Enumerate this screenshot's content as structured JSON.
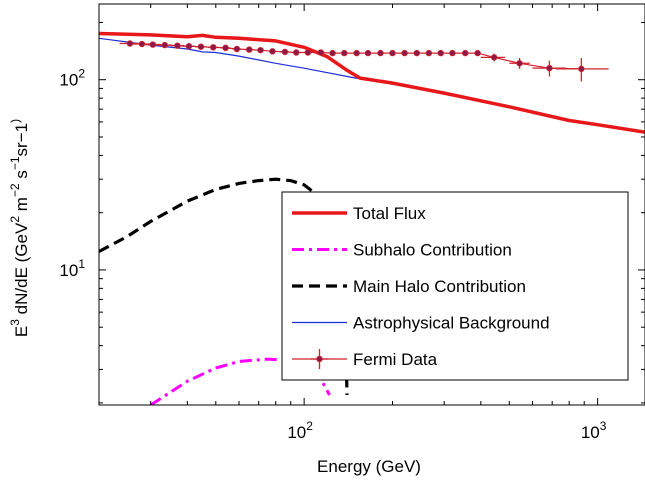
{
  "chart_data": {
    "type": "line",
    "xlabel": "Energy (GeV)",
    "ylabel_parts": [
      "E",
      "3",
      " dN/dE (GeV",
      "2",
      " m",
      "−2",
      " s",
      "−1",
      "sr",
      "−1",
      ")"
    ],
    "x_scale": "log",
    "y_scale": "log",
    "xlim": [
      20,
      1450
    ],
    "ylim": [
      1.95,
      250
    ],
    "x_ticks": [
      {
        "value": 100,
        "base": "10",
        "exp": "2"
      },
      {
        "value": 1000,
        "base": "10",
        "exp": "3"
      }
    ],
    "y_ticks": [
      {
        "value": 10,
        "base": "10",
        "exp": "1"
      },
      {
        "value": 100,
        "base": "10",
        "exp": "2"
      }
    ],
    "grid": false,
    "legend_position": "bottom-right",
    "series": [
      {
        "name": "Total Flux",
        "color": "#e8171a",
        "style": "solid-thick",
        "x": [
          20,
          30,
          40,
          45,
          50,
          60,
          80,
          100,
          120,
          140,
          155,
          200,
          300,
          500,
          800,
          1000,
          1450
        ],
        "y": [
          175,
          172,
          168,
          171,
          167,
          165,
          160,
          148,
          132,
          112,
          102,
          96,
          85,
          72,
          61,
          58,
          53
        ]
      },
      {
        "name": "Subhalo Contribution",
        "color": "#ff00ff",
        "style": "dashdot",
        "x": [
          30,
          40,
          50,
          60,
          75,
          90,
          105,
          115,
          122
        ],
        "y": [
          1.95,
          2.6,
          3.05,
          3.3,
          3.4,
          3.35,
          3.05,
          2.6,
          2.2
        ]
      },
      {
        "name": "Main Halo Contribution",
        "color": "#000000",
        "style": "dashed",
        "x": [
          20,
          25,
          30,
          40,
          50,
          60,
          70,
          80,
          90,
          100,
          110,
          120,
          130,
          138,
          140
        ],
        "y": [
          12.5,
          15,
          18,
          23,
          26.5,
          28.5,
          29.5,
          30,
          29.5,
          28,
          25,
          20,
          12,
          6,
          2.2
        ]
      },
      {
        "name": "Astrophysical Background",
        "color": "#1c2fd6",
        "style": "solid-thin",
        "x": [
          20,
          30,
          40,
          45,
          50,
          60,
          80,
          100,
          150,
          200,
          300,
          500,
          800,
          1000,
          1450
        ],
        "y": [
          165,
          152,
          145,
          140,
          139,
          133,
          122,
          115,
          102,
          96,
          85,
          72,
          61,
          58,
          53
        ]
      },
      {
        "name": "Fermi Data",
        "color": "#d3202b",
        "marker_color": "#8b1a4a",
        "style": "errorbar",
        "x": [
          25.5,
          28,
          30.5,
          33.5,
          37,
          40.5,
          44.5,
          49,
          54,
          59,
          65,
          71,
          78,
          86,
          94,
          103,
          114,
          125,
          137,
          151,
          165,
          182,
          200,
          220,
          242,
          266,
          292,
          320,
          354,
          390,
          444,
          542,
          685,
          880
        ],
        "y": [
          155,
          154,
          153,
          152,
          151,
          150,
          149,
          148,
          147,
          145,
          144,
          143,
          141,
          140,
          139,
          139,
          139,
          138,
          138,
          138,
          138,
          138,
          138,
          138,
          138,
          138,
          138,
          138,
          138,
          138,
          131,
          122,
          115,
          114
        ],
        "xerr_lo": [
          2,
          2,
          2,
          2,
          2,
          2,
          2,
          2,
          2,
          2,
          2,
          2,
          2,
          3,
          3,
          3,
          3,
          3,
          3,
          3,
          3,
          3,
          3,
          3,
          3,
          3,
          3,
          3,
          3,
          3,
          44,
          42,
          85,
          160
        ],
        "xerr_hi": [
          2,
          2,
          2,
          2,
          2,
          2,
          2,
          2,
          2,
          2,
          2,
          2,
          2,
          3,
          3,
          3,
          3,
          3,
          3,
          3,
          3,
          3,
          3,
          3,
          3,
          3,
          3,
          3,
          3,
          3,
          40,
          45,
          95,
          210
        ],
        "yerr": [
          2,
          2,
          2,
          2,
          2,
          2,
          2,
          2,
          2,
          2,
          2,
          2,
          2,
          2,
          2,
          2,
          2,
          2,
          2,
          2,
          2,
          2,
          2,
          2,
          2,
          2,
          2,
          2,
          2,
          2,
          6,
          8,
          11,
          16
        ]
      }
    ]
  }
}
